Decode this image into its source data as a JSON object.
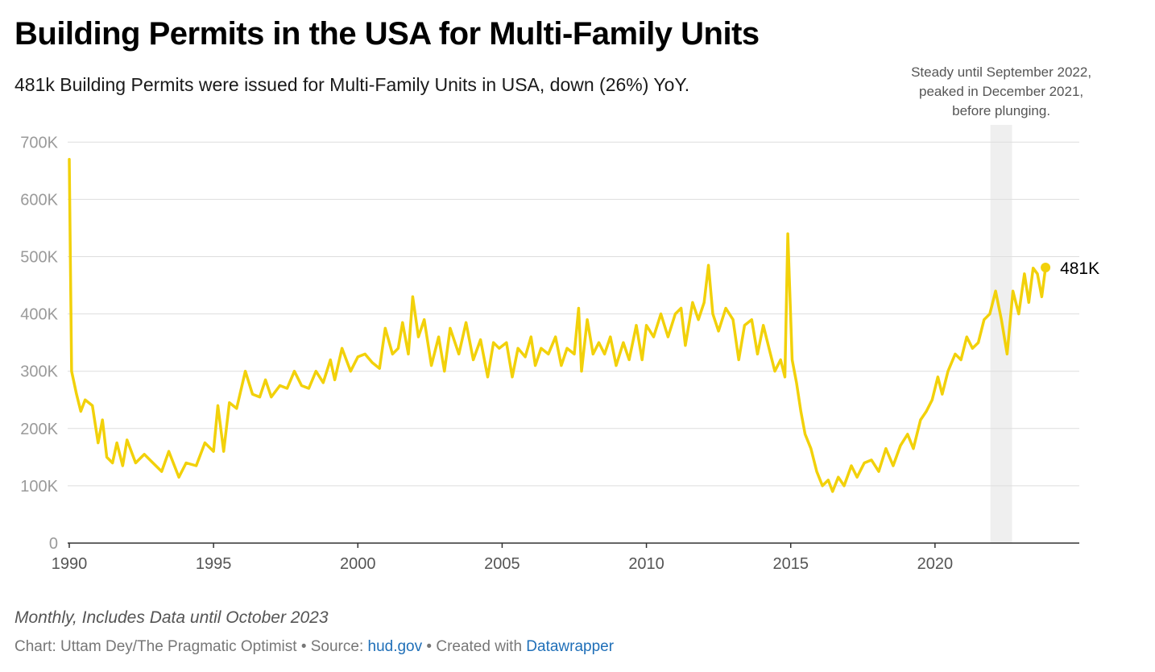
{
  "chart_data": {
    "type": "line",
    "title": "Building Permits in the USA for Multi-Family Units",
    "subtitle": "481k Building Permits were issued for Multi-Family Units in USA, down (26%) YoY.",
    "frequency": "monthly",
    "x_range": [
      1990.0,
      2023.83
    ],
    "ylim": [
      0,
      730000
    ],
    "y_ticks": [
      0,
      100000,
      200000,
      300000,
      400000,
      500000,
      600000,
      700000
    ],
    "y_tick_labels": [
      "0",
      "100K",
      "200K",
      "300K",
      "400K",
      "500K",
      "600K",
      "700K"
    ],
    "x_ticks": [
      1990,
      1995,
      2000,
      2005,
      2010,
      2015,
      2020
    ],
    "x_tick_labels": [
      "1990",
      "1995",
      "2000",
      "2005",
      "2010",
      "2015",
      "2020"
    ],
    "grid": "horizontal",
    "line_color": "#f2d10a",
    "series": [
      {
        "values": [
          [
            1990.0,
            670000
          ],
          [
            1990.08,
            300000
          ],
          [
            1990.25,
            260000
          ],
          [
            1990.4,
            230000
          ],
          [
            1990.55,
            250000
          ],
          [
            1990.8,
            240000
          ],
          [
            1991.0,
            175000
          ],
          [
            1991.15,
            215000
          ],
          [
            1991.3,
            150000
          ],
          [
            1991.5,
            140000
          ],
          [
            1991.65,
            175000
          ],
          [
            1991.85,
            135000
          ],
          [
            1992.0,
            180000
          ],
          [
            1992.3,
            140000
          ],
          [
            1992.6,
            155000
          ],
          [
            1992.9,
            140000
          ],
          [
            1993.2,
            125000
          ],
          [
            1993.45,
            160000
          ],
          [
            1993.8,
            115000
          ],
          [
            1994.05,
            140000
          ],
          [
            1994.4,
            135000
          ],
          [
            1994.7,
            175000
          ],
          [
            1995.0,
            160000
          ],
          [
            1995.15,
            240000
          ],
          [
            1995.35,
            160000
          ],
          [
            1995.55,
            245000
          ],
          [
            1995.8,
            235000
          ],
          [
            1996.1,
            300000
          ],
          [
            1996.35,
            260000
          ],
          [
            1996.6,
            255000
          ],
          [
            1996.8,
            285000
          ],
          [
            1997.0,
            255000
          ],
          [
            1997.3,
            275000
          ],
          [
            1997.55,
            270000
          ],
          [
            1997.8,
            300000
          ],
          [
            1998.05,
            275000
          ],
          [
            1998.3,
            270000
          ],
          [
            1998.55,
            300000
          ],
          [
            1998.8,
            280000
          ],
          [
            1999.05,
            320000
          ],
          [
            1999.2,
            285000
          ],
          [
            1999.45,
            340000
          ],
          [
            1999.75,
            300000
          ],
          [
            2000.0,
            325000
          ],
          [
            2000.25,
            330000
          ],
          [
            2000.5,
            315000
          ],
          [
            2000.75,
            305000
          ],
          [
            2000.95,
            375000
          ],
          [
            2001.2,
            330000
          ],
          [
            2001.4,
            340000
          ],
          [
            2001.55,
            385000
          ],
          [
            2001.75,
            330000
          ],
          [
            2001.9,
            430000
          ],
          [
            2002.1,
            360000
          ],
          [
            2002.3,
            390000
          ],
          [
            2002.55,
            310000
          ],
          [
            2002.8,
            360000
          ],
          [
            2003.0,
            300000
          ],
          [
            2003.2,
            375000
          ],
          [
            2003.5,
            330000
          ],
          [
            2003.75,
            385000
          ],
          [
            2004.0,
            320000
          ],
          [
            2004.25,
            355000
          ],
          [
            2004.5,
            290000
          ],
          [
            2004.7,
            350000
          ],
          [
            2004.9,
            340000
          ],
          [
            2005.15,
            350000
          ],
          [
            2005.35,
            290000
          ],
          [
            2005.55,
            340000
          ],
          [
            2005.8,
            325000
          ],
          [
            2006.0,
            360000
          ],
          [
            2006.15,
            310000
          ],
          [
            2006.35,
            340000
          ],
          [
            2006.6,
            330000
          ],
          [
            2006.85,
            360000
          ],
          [
            2007.05,
            310000
          ],
          [
            2007.25,
            340000
          ],
          [
            2007.5,
            330000
          ],
          [
            2007.65,
            410000
          ],
          [
            2007.75,
            300000
          ],
          [
            2007.95,
            390000
          ],
          [
            2008.15,
            330000
          ],
          [
            2008.35,
            350000
          ],
          [
            2008.55,
            330000
          ],
          [
            2008.75,
            360000
          ],
          [
            2008.95,
            310000
          ],
          [
            2009.2,
            350000
          ],
          [
            2009.4,
            320000
          ],
          [
            2009.65,
            380000
          ],
          [
            2009.85,
            320000
          ],
          [
            2010.0,
            380000
          ],
          [
            2010.25,
            360000
          ],
          [
            2010.5,
            400000
          ],
          [
            2010.75,
            360000
          ],
          [
            2011.0,
            400000
          ],
          [
            2011.2,
            410000
          ],
          [
            2011.35,
            345000
          ],
          [
            2011.6,
            420000
          ],
          [
            2011.8,
            390000
          ],
          [
            2012.0,
            420000
          ],
          [
            2012.15,
            485000
          ],
          [
            2012.3,
            400000
          ],
          [
            2012.5,
            370000
          ],
          [
            2012.75,
            410000
          ],
          [
            2013.0,
            390000
          ],
          [
            2013.2,
            320000
          ],
          [
            2013.4,
            380000
          ],
          [
            2013.65,
            390000
          ],
          [
            2013.85,
            330000
          ],
          [
            2014.05,
            380000
          ],
          [
            2014.25,
            340000
          ],
          [
            2014.45,
            300000
          ],
          [
            2014.65,
            320000
          ],
          [
            2014.8,
            290000
          ],
          [
            2014.9,
            540000
          ],
          [
            2015.05,
            320000
          ],
          [
            2015.2,
            280000
          ],
          [
            2015.35,
            230000
          ],
          [
            2015.5,
            190000
          ],
          [
            2015.7,
            165000
          ],
          [
            2015.9,
            125000
          ],
          [
            2016.1,
            100000
          ],
          [
            2016.3,
            110000
          ],
          [
            2016.45,
            90000
          ],
          [
            2016.65,
            115000
          ],
          [
            2016.85,
            100000
          ],
          [
            2017.1,
            135000
          ],
          [
            2017.3,
            115000
          ],
          [
            2017.55,
            140000
          ],
          [
            2017.8,
            145000
          ],
          [
            2018.05,
            125000
          ],
          [
            2018.3,
            165000
          ],
          [
            2018.55,
            135000
          ],
          [
            2018.8,
            170000
          ],
          [
            2019.05,
            190000
          ],
          [
            2019.25,
            165000
          ],
          [
            2019.5,
            215000
          ],
          [
            2019.7,
            230000
          ],
          [
            2019.9,
            250000
          ],
          [
            2020.1,
            290000
          ],
          [
            2020.25,
            260000
          ],
          [
            2020.45,
            300000
          ],
          [
            2020.7,
            330000
          ],
          [
            2020.9,
            320000
          ],
          [
            2021.1,
            360000
          ],
          [
            2021.3,
            340000
          ],
          [
            2021.5,
            350000
          ],
          [
            2021.7,
            390000
          ],
          [
            2021.9,
            400000
          ],
          [
            2022.1,
            440000
          ],
          [
            2022.3,
            390000
          ],
          [
            2022.5,
            330000
          ],
          [
            2022.7,
            440000
          ],
          [
            2022.9,
            400000
          ],
          [
            2023.1,
            470000
          ],
          [
            2023.25,
            420000
          ],
          [
            2023.4,
            480000
          ],
          [
            2023.55,
            470000
          ],
          [
            2023.7,
            430000
          ],
          [
            2023.83,
            481000
          ]
        ]
      }
    ],
    "highlight_band": {
      "start": 2021.92,
      "end": 2022.67
    },
    "annotation": [
      "Steady until September 2022,",
      "peaked in December 2021,",
      "before plunging."
    ],
    "end_label": "481K",
    "end_value": 481000,
    "notes": "Monthly, Includes Data until October 2023"
  },
  "footer": {
    "prefix": "Chart: Uttam Dey/The Pragmatic Optimist • Source: ",
    "source_link": "hud.gov",
    "middle": " • Created with ",
    "tool_link": "Datawrapper"
  }
}
